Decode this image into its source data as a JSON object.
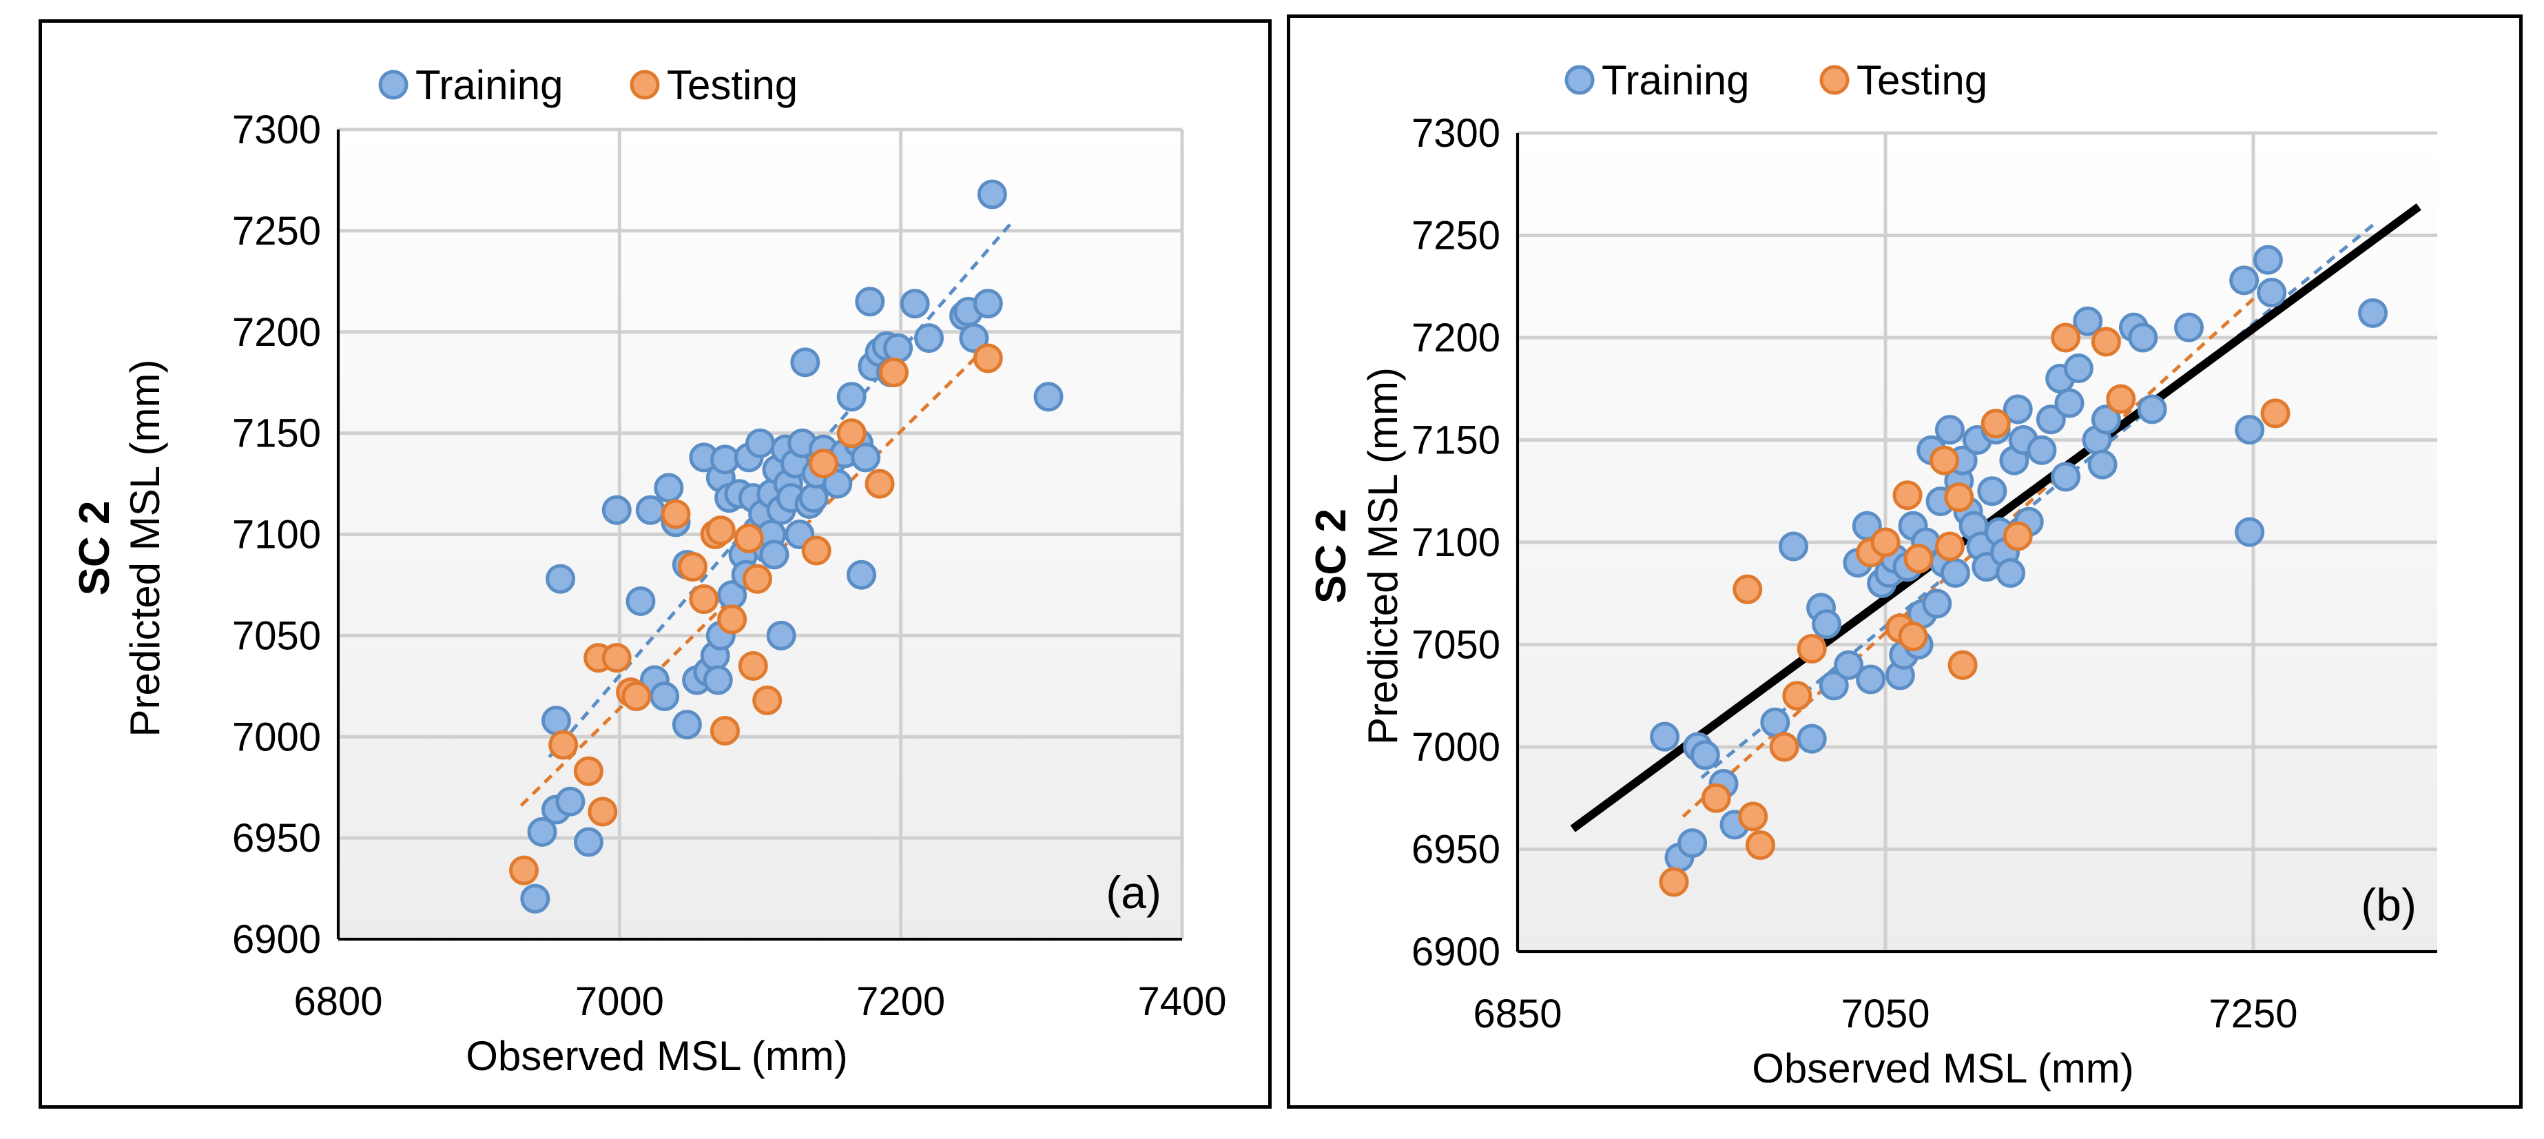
{
  "colors": {
    "training_fill": "#8db4e2",
    "training_stroke": "#5b8ec6",
    "testing_fill": "#f4a46a",
    "testing_stroke": "#e07a2e",
    "gridline": "#d0d0d0",
    "fit_line": "#000000"
  },
  "chart_data": [
    {
      "type": "scatter",
      "panel_label": "(a)",
      "row_label": "SC 2",
      "xlabel": "Observed MSL (mm)",
      "ylabel": "Predicted MSL (mm)",
      "xlim": [
        6800,
        7400
      ],
      "ylim": [
        6900,
        7300
      ],
      "x_ticks": [
        "6800",
        "7000",
        "7200",
        "7400"
      ],
      "y_ticks": [
        "6900",
        "6950",
        "7000",
        "7050",
        "7100",
        "7150",
        "7200",
        "7250",
        "7300"
      ],
      "grid": true,
      "legend": "top",
      "legend_entries": [
        "Training",
        "Testing"
      ],
      "series": [
        {
          "name": "Training",
          "points": [
            [
              6940,
              6920
            ],
            [
              6945,
              6953
            ],
            [
              6955,
              6964
            ],
            [
              6965,
              6968
            ],
            [
              6978,
              6948
            ],
            [
              6955,
              7008
            ],
            [
              6958,
              7078
            ],
            [
              6998,
              7112
            ],
            [
              7015,
              7067
            ],
            [
              7022,
              7112
            ],
            [
              7035,
              7123
            ],
            [
              7025,
              7028
            ],
            [
              7032,
              7020
            ],
            [
              7040,
              7106
            ],
            [
              7048,
              7006
            ],
            [
              7048,
              7085
            ],
            [
              7055,
              7028
            ],
            [
              7060,
              7138
            ],
            [
              7063,
              7032
            ],
            [
              7068,
              7040
            ],
            [
              7070,
              7028
            ],
            [
              7072,
              7050
            ],
            [
              7072,
              7128
            ],
            [
              7075,
              7137
            ],
            [
              7078,
              7118
            ],
            [
              7080,
              7070
            ],
            [
              7085,
              7120
            ],
            [
              7088,
              7090
            ],
            [
              7090,
              7080
            ],
            [
              7092,
              7138
            ],
            [
              7095,
              7118
            ],
            [
              7098,
              7102
            ],
            [
              7100,
              7145
            ],
            [
              7102,
              7110
            ],
            [
              7105,
              7093
            ],
            [
              7108,
              7100
            ],
            [
              7108,
              7120
            ],
            [
              7110,
              7090
            ],
            [
              7112,
              7132
            ],
            [
              7115,
              7050
            ],
            [
              7115,
              7112
            ],
            [
              7118,
              7142
            ],
            [
              7120,
              7125
            ],
            [
              7122,
              7118
            ],
            [
              7125,
              7135
            ],
            [
              7128,
              7100
            ],
            [
              7130,
              7145
            ],
            [
              7132,
              7185
            ],
            [
              7135,
              7115
            ],
            [
              7138,
              7118
            ],
            [
              7140,
              7130
            ],
            [
              7145,
              7142
            ],
            [
              7150,
              7135
            ],
            [
              7155,
              7125
            ],
            [
              7160,
              7140
            ],
            [
              7165,
              7168
            ],
            [
              7170,
              7145
            ],
            [
              7172,
              7080
            ],
            [
              7175,
              7138
            ],
            [
              7178,
              7215
            ],
            [
              7180,
              7183
            ],
            [
              7185,
              7190
            ],
            [
              7190,
              7193
            ],
            [
              7193,
              7180
            ],
            [
              7198,
              7192
            ],
            [
              7210,
              7214
            ],
            [
              7220,
              7197
            ],
            [
              7245,
              7208
            ],
            [
              7248,
              7210
            ],
            [
              7252,
              7197
            ],
            [
              7262,
              7214
            ],
            [
              7265,
              7268
            ],
            [
              7305,
              7168
            ]
          ]
        },
        {
          "name": "Testing",
          "points": [
            [
              6932,
              6934
            ],
            [
              6960,
              6996
            ],
            [
              6978,
              6983
            ],
            [
              6985,
              7039
            ],
            [
              6988,
              6963
            ],
            [
              6998,
              7039
            ],
            [
              7008,
              7022
            ],
            [
              7012,
              7020
            ],
            [
              7040,
              7110
            ],
            [
              7052,
              7084
            ],
            [
              7060,
              7068
            ],
            [
              7068,
              7100
            ],
            [
              7072,
              7102
            ],
            [
              7075,
              7003
            ],
            [
              7080,
              7058
            ],
            [
              7092,
              7098
            ],
            [
              7095,
              7035
            ],
            [
              7098,
              7078
            ],
            [
              7105,
              7018
            ],
            [
              7140,
              7092
            ],
            [
              7145,
              7135
            ],
            [
              7165,
              7150
            ],
            [
              7185,
              7125
            ],
            [
              7195,
              7180
            ],
            [
              7262,
              7187
            ]
          ]
        }
      ],
      "trendlines": [
        {
          "series": "Training",
          "x": [
            6950,
            7280
          ],
          "y": [
            6990,
            7255
          ]
        },
        {
          "series": "Testing",
          "x": [
            6930,
            7260
          ],
          "y": [
            6966,
            7192
          ]
        }
      ]
    },
    {
      "type": "scatter",
      "panel_label": "(b)",
      "row_label": "SC 2",
      "xlabel": "Observed MSL (mm)",
      "ylabel": "Predicted MSL (mm)",
      "xlim": [
        6850,
        7350
      ],
      "ylim": [
        6900,
        7300
      ],
      "x_ticks": [
        "6850",
        "7050",
        "7250"
      ],
      "y_ticks": [
        "6900",
        "6950",
        "7000",
        "7050",
        "7100",
        "7150",
        "7200",
        "7250",
        "7300"
      ],
      "grid": true,
      "legend": "top",
      "legend_entries": [
        "Training",
        "Testing"
      ],
      "series": [
        {
          "name": "Training",
          "points": [
            [
              6938,
              6946
            ],
            [
              6945,
              6953
            ],
            [
              6948,
              7000
            ],
            [
              6952,
              6996
            ],
            [
              6962,
              6982
            ],
            [
              6930,
              7005
            ],
            [
              6968,
              6962
            ],
            [
              6990,
              7012
            ],
            [
              7000,
              7098
            ],
            [
              7010,
              7004
            ],
            [
              7015,
              7068
            ],
            [
              7018,
              7060
            ],
            [
              7022,
              7030
            ],
            [
              7030,
              7040
            ],
            [
              7035,
              7090
            ],
            [
              7040,
              7108
            ],
            [
              7042,
              7033
            ],
            [
              7048,
              7080
            ],
            [
              7052,
              7085
            ],
            [
              7055,
              7092
            ],
            [
              7058,
              7035
            ],
            [
              7060,
              7045
            ],
            [
              7062,
              7088
            ],
            [
              7065,
              7108
            ],
            [
              7068,
              7050
            ],
            [
              7070,
              7065
            ],
            [
              7072,
              7100
            ],
            [
              7075,
              7145
            ],
            [
              7078,
              7070
            ],
            [
              7080,
              7120
            ],
            [
              7082,
              7090
            ],
            [
              7085,
              7155
            ],
            [
              7088,
              7085
            ],
            [
              7090,
              7130
            ],
            [
              7092,
              7140
            ],
            [
              7095,
              7115
            ],
            [
              7098,
              7108
            ],
            [
              7100,
              7150
            ],
            [
              7102,
              7098
            ],
            [
              7105,
              7088
            ],
            [
              7108,
              7125
            ],
            [
              7110,
              7155
            ],
            [
              7112,
              7105
            ],
            [
              7115,
              7095
            ],
            [
              7118,
              7085
            ],
            [
              7120,
              7140
            ],
            [
              7122,
              7165
            ],
            [
              7125,
              7150
            ],
            [
              7128,
              7110
            ],
            [
              7135,
              7145
            ],
            [
              7140,
              7160
            ],
            [
              7145,
              7180
            ],
            [
              7148,
              7132
            ],
            [
              7150,
              7168
            ],
            [
              7155,
              7185
            ],
            [
              7160,
              7208
            ],
            [
              7165,
              7150
            ],
            [
              7168,
              7138
            ],
            [
              7170,
              7160
            ],
            [
              7185,
              7205
            ],
            [
              7190,
              7200
            ],
            [
              7195,
              7165
            ],
            [
              7215,
              7205
            ],
            [
              7245,
              7228
            ],
            [
              7248,
              7155
            ],
            [
              7248,
              7105
            ],
            [
              7258,
              7238
            ],
            [
              7260,
              7222
            ],
            [
              7315,
              7212
            ]
          ]
        },
        {
          "name": "Testing",
          "points": [
            [
              6935,
              6934
            ],
            [
              6958,
              6975
            ],
            [
              6975,
              7077
            ],
            [
              6978,
              6966
            ],
            [
              6982,
              6952
            ],
            [
              6995,
              7000
            ],
            [
              7002,
              7025
            ],
            [
              7010,
              7048
            ],
            [
              7042,
              7095
            ],
            [
              7050,
              7100
            ],
            [
              7058,
              7058
            ],
            [
              7062,
              7123
            ],
            [
              7065,
              7054
            ],
            [
              7068,
              7092
            ],
            [
              7082,
              7140
            ],
            [
              7085,
              7098
            ],
            [
              7090,
              7122
            ],
            [
              7092,
              7040
            ],
            [
              7110,
              7158
            ],
            [
              7122,
              7103
            ],
            [
              7148,
              7200
            ],
            [
              7170,
              7198
            ],
            [
              7178,
              7170
            ],
            [
              7262,
              7163
            ]
          ]
        }
      ],
      "trendlines": [
        {
          "series": "Training",
          "x": [
            6950,
            7315
          ],
          "y": [
            6985,
            7255
          ]
        },
        {
          "series": "Testing",
          "x": [
            6940,
            7255
          ],
          "y": [
            6966,
            7223
          ]
        },
        {
          "series": "fit",
          "x": [
            6880,
            7340
          ],
          "y": [
            6960,
            7264
          ]
        }
      ]
    }
  ]
}
